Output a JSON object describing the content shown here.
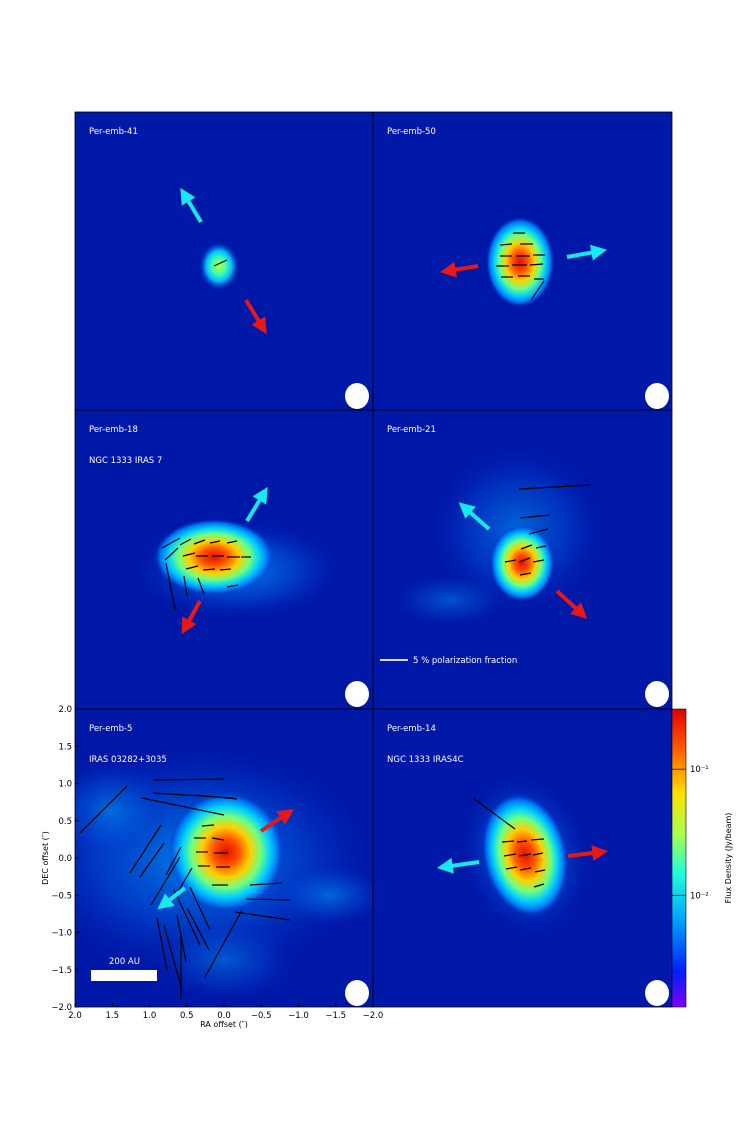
{
  "chart_data": {
    "type": "heatmap",
    "layout": {
      "rows": 3,
      "cols": 2
    },
    "panels": [
      {
        "name": "Per-emb-41",
        "subtitle": "",
        "source_peak": [
          0.07,
          -0.12
        ],
        "outflow_blue_pa_deg": 330,
        "outflow_red_pa_deg": 150,
        "beam": true,
        "vectors": [
          [
            -0.02,
            -0.12,
            -0.15,
            0.08,
            60
          ]
        ]
      },
      {
        "name": "Per-emb-50",
        "subtitle": "",
        "source_peak": [
          0.02,
          -0.16
        ],
        "outflow_blue_pa_deg": 80,
        "outflow_red_pa_deg": 260,
        "beam": true,
        "vectors": []
      },
      {
        "name": "Per-emb-18",
        "subtitle": "NGC 1333 IRAS 7",
        "source_peak": [
          0.3,
          -0.4
        ],
        "outflow_blue_pa_deg": 330,
        "outflow_red_pa_deg": 210,
        "beam": true,
        "vectors": []
      },
      {
        "name": "Per-emb-21",
        "subtitle": "",
        "source_peak": [
          -0.03,
          -0.35
        ],
        "outflow_blue_pa_deg": 315,
        "outflow_red_pa_deg": 135,
        "beam": true,
        "vectors": []
      },
      {
        "name": "Per-emb-5",
        "subtitle": "IRAS 03282+3035",
        "source_peak": [
          0.0,
          0.0
        ],
        "outflow_blue_pa_deg": 230,
        "outflow_red_pa_deg": 50,
        "beam": true,
        "vectors": []
      },
      {
        "name": "Per-emb-14",
        "subtitle": "NGC 1333 IRAS4C",
        "source_peak": [
          0.1,
          -0.05
        ],
        "outflow_blue_pa_deg": 265,
        "outflow_red_pa_deg": 85,
        "beam": true,
        "vectors": []
      }
    ],
    "xlabel": "RA offset (″)",
    "ylabel": "DEC offset (″)",
    "xlim": [
      2.0,
      -2.0
    ],
    "ylim": [
      -2.0,
      2.0
    ],
    "xticks": [
      "2.0",
      "1.5",
      "1.0",
      "0.5",
      "0.0",
      "−0.5",
      "−1.0",
      "−1.5",
      "−2.0"
    ],
    "yticks": [
      "2.0",
      "1.5",
      "1.0",
      "0.5",
      "0.0",
      "−0.5",
      "−1.0",
      "−1.5",
      "−2.0"
    ],
    "colorbar": {
      "label": "Flux Density (Jy/beam)",
      "scale": "log",
      "ticks": [
        {
          "label": "10⁻¹",
          "value": 0.1
        },
        {
          "label": "10⁻²",
          "value": 0.01
        }
      ],
      "range": [
        0.0013,
        0.3
      ],
      "colormap": "jet"
    },
    "annotations": {
      "polarization_legend": "5 % polarization fraction",
      "scalebar": "200 AU"
    },
    "colors": {
      "blue_outflow": "#18e8f0",
      "red_outflow": "#e81818",
      "background": "#0018a8"
    }
  }
}
